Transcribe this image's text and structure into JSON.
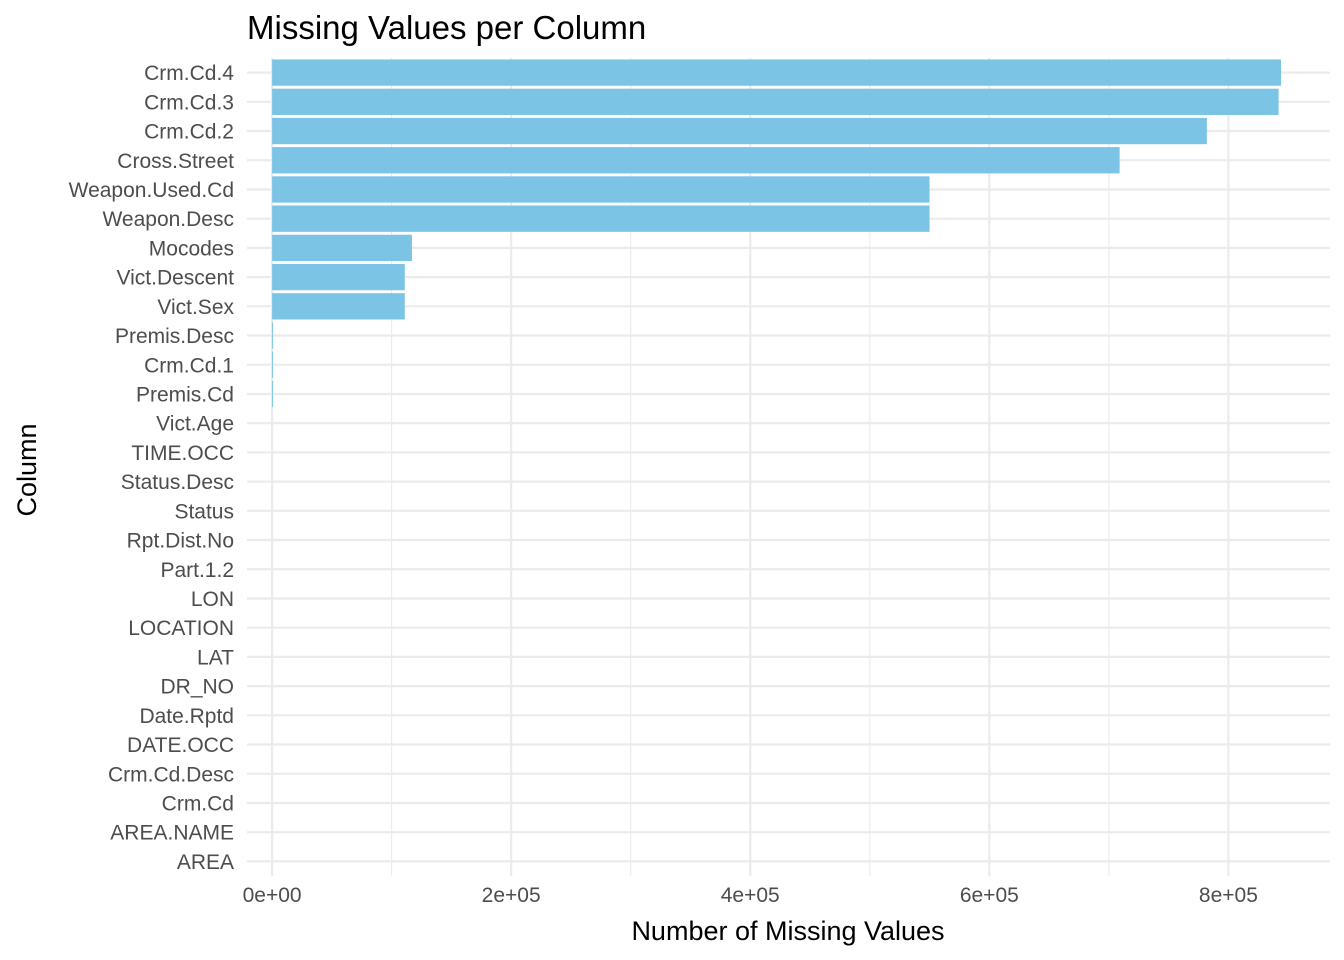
{
  "chart_data": {
    "type": "bar",
    "orientation": "horizontal",
    "title": "Missing Values per Column",
    "xlabel": "Number of Missing Values",
    "ylabel": "Column",
    "bar_color": "#7BC4E6",
    "grid": true,
    "legend": "none",
    "xlim": [
      -21000,
      885000
    ],
    "x_ticks": [
      0,
      200000,
      400000,
      600000,
      800000
    ],
    "x_tick_labels": [
      "0e+00",
      "2e+05",
      "4e+05",
      "6e+05",
      "8e+05"
    ],
    "categories": [
      "Crm.Cd.4",
      "Crm.Cd.3",
      "Crm.Cd.2",
      "Cross.Street",
      "Weapon.Used.Cd",
      "Weapon.Desc",
      "Mocodes",
      "Vict.Descent",
      "Vict.Sex",
      "Premis.Desc",
      "Crm.Cd.1",
      "Premis.Cd",
      "Vict.Age",
      "TIME.OCC",
      "Status.Desc",
      "Status",
      "Rpt.Dist.No",
      "Part.1.2",
      "LON",
      "LOCATION",
      "LAT",
      "DR_NO",
      "Date.Rptd",
      "DATE.OCC",
      "Crm.Cd.Desc",
      "Crm.Cd",
      "AREA.NAME",
      "AREA"
    ],
    "values": [
      844000,
      842000,
      782000,
      709000,
      550000,
      550000,
      117000,
      111000,
      111000,
      500,
      10,
      10,
      0,
      0,
      0,
      0,
      0,
      0,
      0,
      0,
      0,
      0,
      0,
      0,
      0,
      0,
      0,
      0
    ]
  }
}
